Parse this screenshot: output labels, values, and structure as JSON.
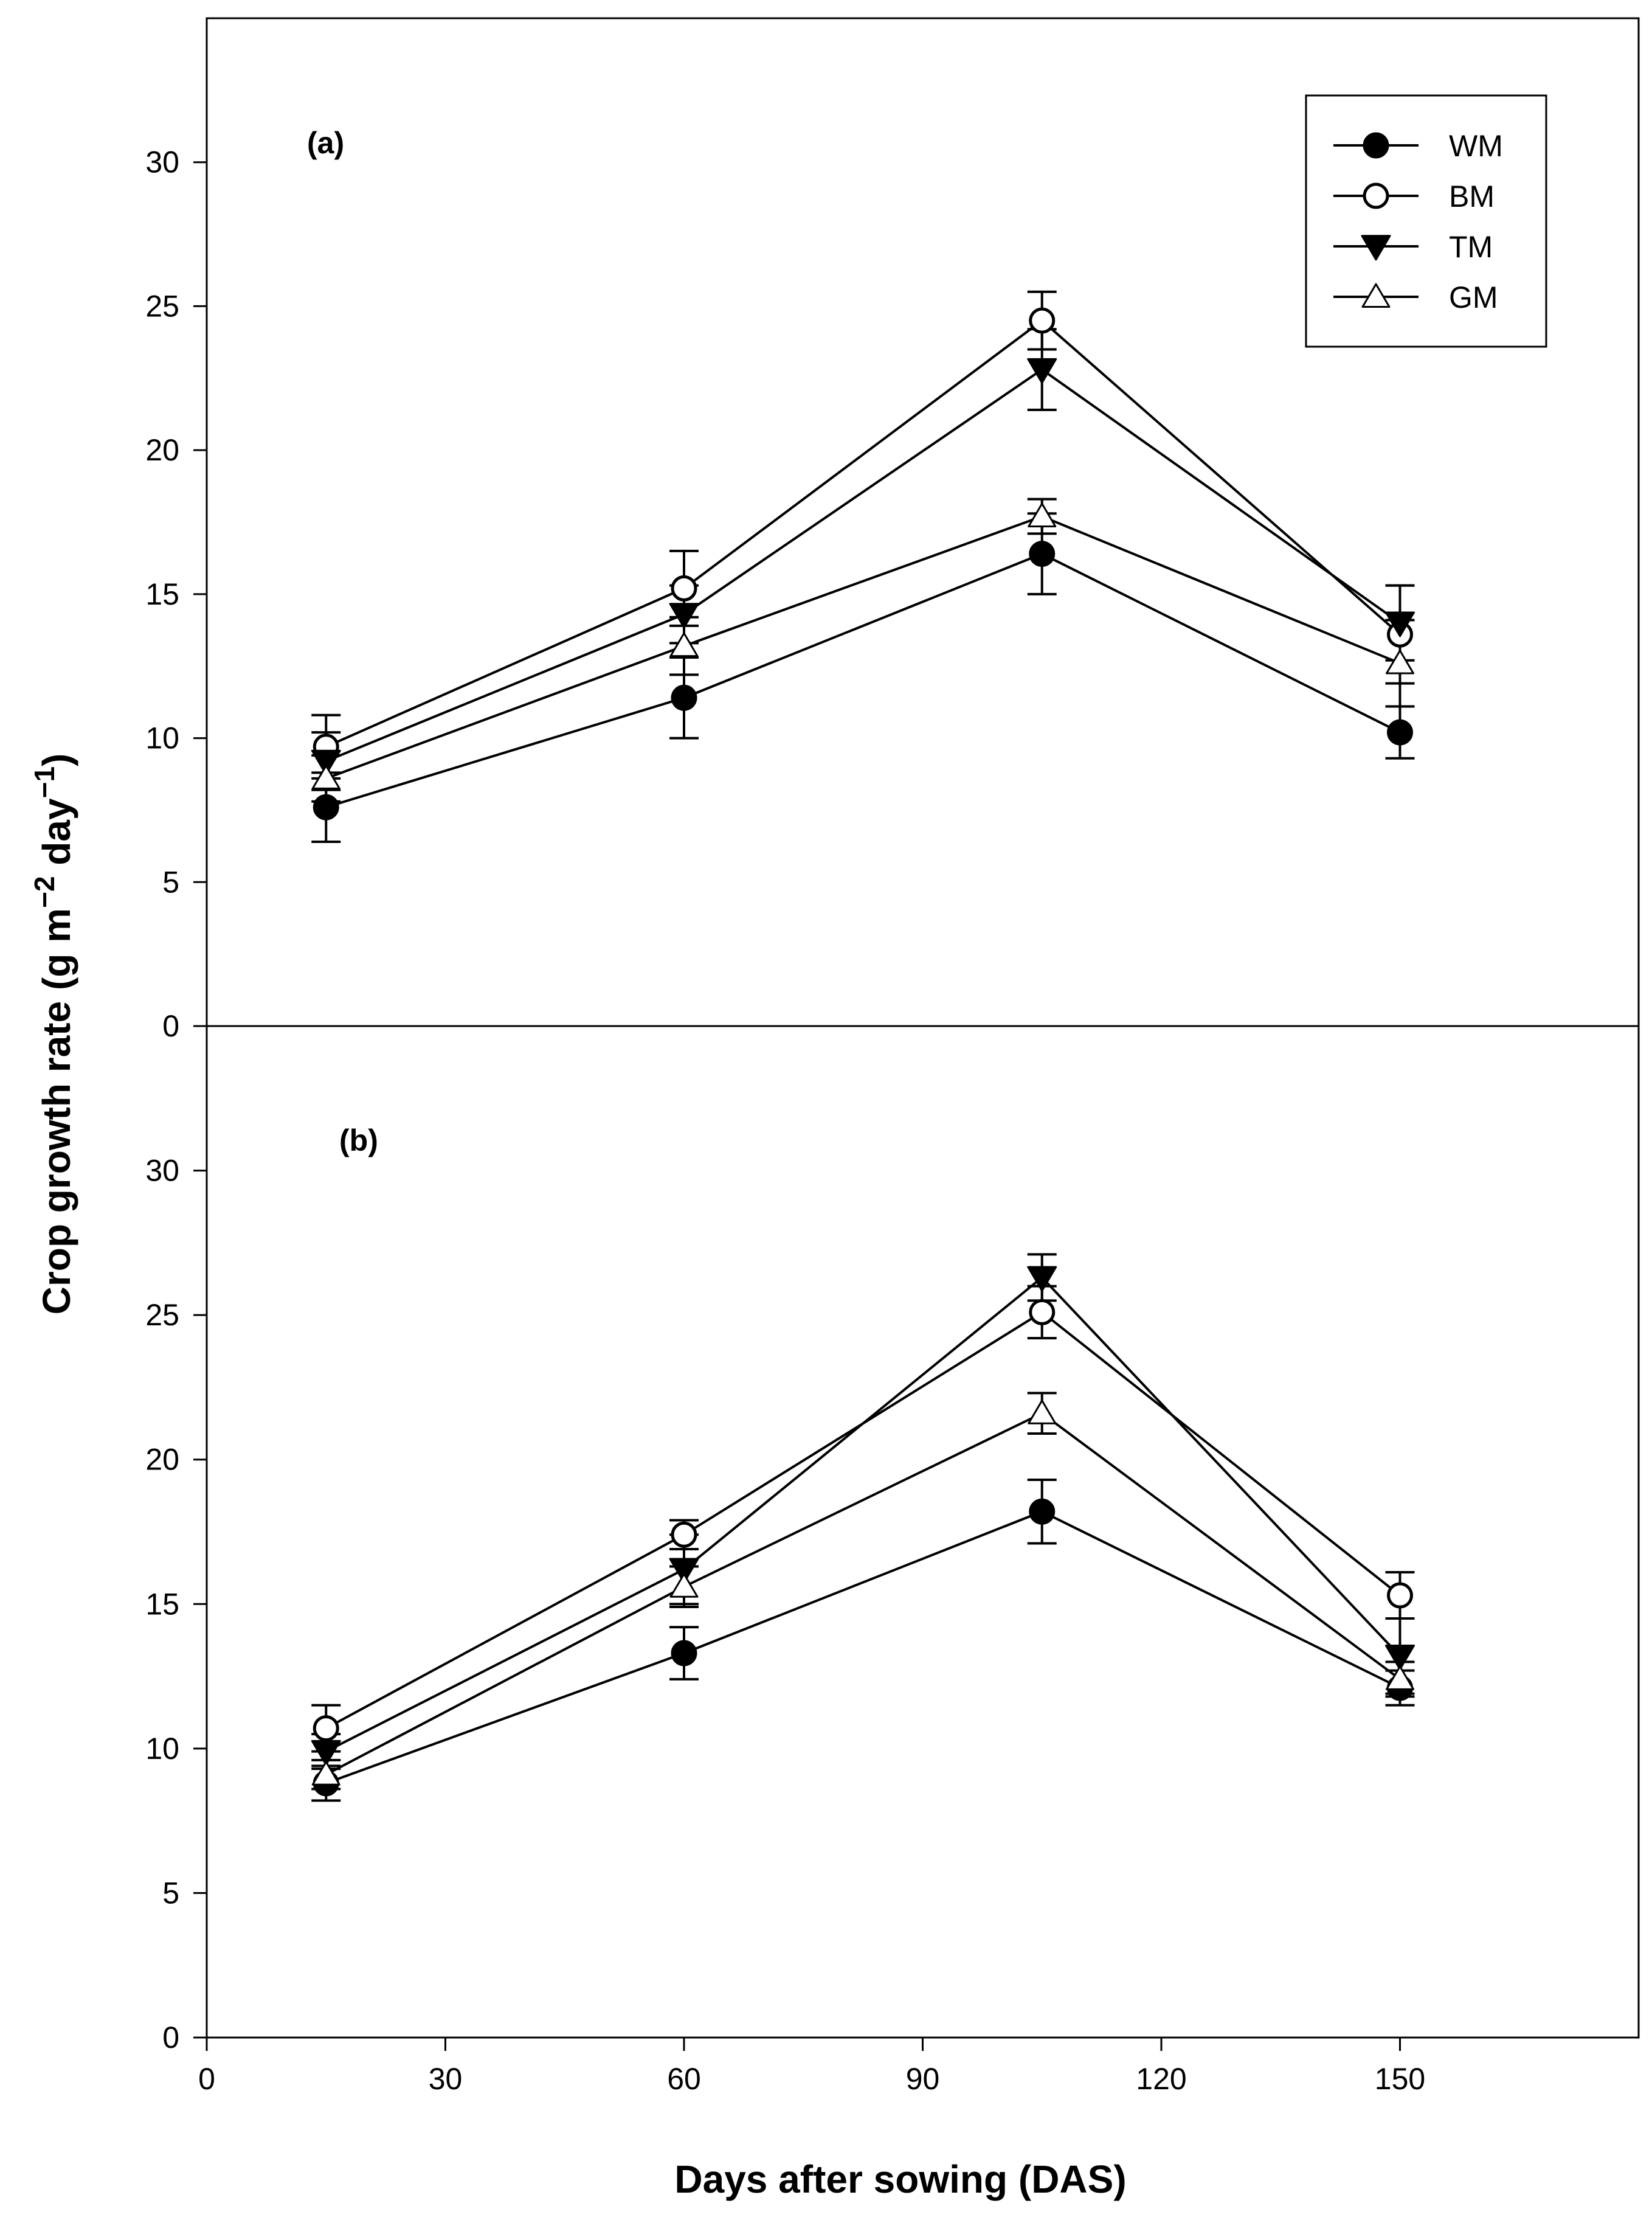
{
  "chart_data": {
    "type": "line",
    "ylabel": "Crop growth rate (g m⁻² day⁻¹)",
    "ylabel_base": "Crop growth rate (g m",
    "ylabel_sup1": "−2",
    "ylabel_mid": " day",
    "ylabel_sup2": "−1",
    "ylabel_end": ")",
    "xlabel": "Days after sowing (DAS)",
    "xlim": [
      0,
      180
    ],
    "x_ticks": [
      0,
      30,
      60,
      90,
      120,
      150
    ],
    "x": [
      15,
      60,
      105,
      150
    ],
    "legend": {
      "position": "top-right",
      "entries": [
        {
          "name": "WM",
          "marker": "filled-circle"
        },
        {
          "name": "BM",
          "marker": "open-circle"
        },
        {
          "name": "TM",
          "marker": "filled-triangle-down"
        },
        {
          "name": "GM",
          "marker": "open-triangle-up"
        }
      ]
    },
    "panels": [
      {
        "label": "(a)",
        "ylim": [
          0,
          35
        ],
        "y_ticks": [
          0,
          5,
          10,
          15,
          20,
          25,
          30
        ],
        "series": [
          {
            "name": "WM",
            "values": [
              7.6,
              11.4,
              16.4,
              10.2
            ],
            "errors": [
              1.2,
              1.4,
              1.4,
              0.9
            ]
          },
          {
            "name": "BM",
            "values": [
              9.7,
              15.2,
              24.5,
              13.6
            ],
            "errors": [
              1.1,
              1.3,
              1.0,
              1.7
            ]
          },
          {
            "name": "TM",
            "values": [
              9.2,
              14.3,
              22.8,
              14.0
            ],
            "errors": [
              1.0,
              1.0,
              1.4,
              1.3
            ]
          },
          {
            "name": "GM",
            "values": [
              8.6,
              13.2,
              17.7,
              12.6
            ],
            "errors": [
              0.8,
              1.0,
              0.6,
              1.5
            ]
          }
        ]
      },
      {
        "label": "(b)",
        "ylim": [
          0,
          35
        ],
        "y_ticks": [
          0,
          5,
          10,
          15,
          20,
          25,
          30
        ],
        "series": [
          {
            "name": "WM",
            "values": [
              8.8,
              13.3,
              18.2,
              12.1
            ],
            "errors": [
              0.6,
              0.9,
              1.1,
              0.6
            ]
          },
          {
            "name": "BM",
            "values": [
              10.7,
              17.4,
              25.1,
              15.3
            ],
            "errors": [
              0.8,
              0.5,
              0.9,
              0.8
            ]
          },
          {
            "name": "TM",
            "values": [
              9.9,
              16.2,
              26.3,
              13.2
            ],
            "errors": [
              0.6,
              1.2,
              0.8,
              1.3
            ]
          },
          {
            "name": "GM",
            "values": [
              9.1,
              15.6,
              21.6,
              12.4
            ],
            "errors": [
              0.5,
              0.7,
              0.7,
              0.6
            ]
          }
        ]
      }
    ]
  }
}
